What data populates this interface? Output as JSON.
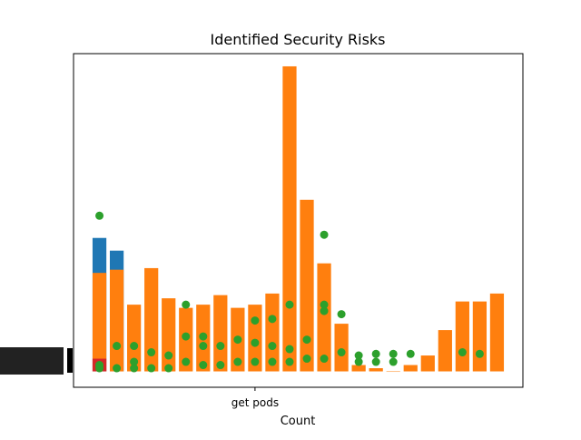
{
  "chart_data": {
    "type": "bar",
    "title": "Identified Security Risks",
    "x_label": "Count",
    "categories": [
      null,
      null,
      null,
      null,
      null,
      null,
      null,
      null,
      null,
      "get pods",
      null,
      null,
      null,
      null,
      null,
      null,
      null,
      null,
      null,
      null,
      null,
      null,
      null,
      null
    ],
    "xlim": [
      -1.5,
      24.5
    ],
    "ylim": [
      -5,
      100
    ],
    "series": [
      {
        "color": "#1f77b4",
        "values": [
          42,
          38,
          null,
          null,
          null,
          null,
          null,
          null,
          null,
          null,
          null,
          null,
          null,
          null,
          null,
          null,
          null,
          null,
          null,
          null,
          null,
          null,
          null,
          null
        ]
      },
      {
        "color": "#ff7f0e",
        "values": [
          31,
          32,
          21,
          32.5,
          23,
          20,
          21,
          24,
          20,
          21,
          24.5,
          96,
          54,
          34,
          15,
          2,
          1,
          0,
          2,
          5,
          13,
          22,
          22,
          24.5
        ]
      },
      {
        "color": "#d62728",
        "values": [
          4,
          null,
          null,
          null,
          null,
          null,
          null,
          null,
          null,
          null,
          null,
          null,
          null,
          null,
          null,
          null,
          null,
          null,
          null,
          null,
          null,
          null,
          null,
          null
        ]
      },
      {
        "type": "scatter",
        "color": "#2ca02c",
        "x": [
          0,
          0,
          0,
          1,
          1,
          2,
          2,
          2,
          3,
          3,
          4,
          4,
          5,
          5,
          5,
          6,
          6,
          6,
          7,
          7,
          8,
          8,
          9,
          9,
          9,
          10,
          10,
          10,
          11,
          11,
          11,
          12,
          12,
          13,
          13,
          13,
          13,
          14,
          14,
          15,
          15,
          16,
          16,
          17,
          17,
          18,
          21,
          22
        ],
        "values": [
          49,
          1,
          2,
          8,
          1,
          8,
          3,
          1,
          6,
          1,
          5,
          1,
          21,
          11,
          3,
          11,
          8,
          2,
          8,
          2,
          10,
          3,
          16,
          9,
          3,
          16.5,
          8,
          3,
          21,
          7,
          3,
          10,
          4,
          43,
          21,
          19,
          4,
          18,
          6,
          5,
          3,
          5.5,
          3,
          5.5,
          3,
          5.5,
          6,
          5.5
        ]
      }
    ]
  }
}
